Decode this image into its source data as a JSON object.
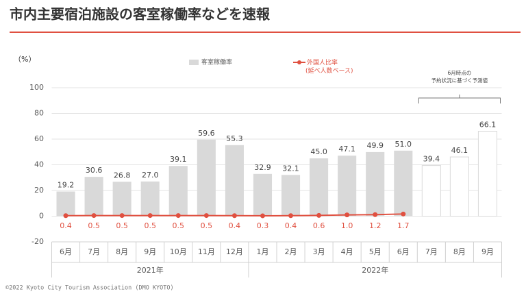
{
  "chart_data": {
    "type": "bar_line",
    "title": "市内主要宿泊施設の客室稼働率などを速報",
    "y_label": "（%）",
    "footer": "©2022 Kyoto City Tourism Association (DMO KYOTO)",
    "categories": [
      "6月",
      "7月",
      "8月",
      "9月",
      "10月",
      "11月",
      "12月",
      "1月",
      "2月",
      "3月",
      "4月",
      "5月",
      "6月",
      "7月",
      "8月",
      "9月"
    ],
    "groups": [
      {
        "label": "2021年",
        "span": 7
      },
      {
        "label": "2022年",
        "span": 9
      }
    ],
    "series": [
      {
        "name": "客室稼働率",
        "type": "bar",
        "color": "#d9d9d9",
        "values": [
          19.2,
          30.6,
          26.8,
          27.0,
          39.1,
          59.6,
          55.3,
          32.9,
          32.1,
          45.0,
          47.1,
          49.9,
          51.0,
          39.4,
          46.1,
          66.1
        ],
        "value_labels": [
          "19.2",
          "30.6",
          "26.8",
          "27.0",
          "39.1",
          "59.6",
          "55.3",
          "32.9",
          "32.1",
          "45.0",
          "47.1",
          "49.9",
          "51.0",
          "39.4",
          "46.1",
          "66.1"
        ]
      },
      {
        "name": "外国人比率\n(延べ人数ベース)",
        "type": "line",
        "color": "#e05040",
        "values": [
          0.4,
          0.5,
          0.5,
          0.5,
          0.5,
          0.5,
          0.4,
          0.3,
          0.4,
          0.6,
          1.0,
          1.2,
          1.7,
          null,
          null,
          null
        ],
        "value_labels": [
          "0.4",
          "0.5",
          "0.5",
          "0.5",
          "0.5",
          "0.5",
          "0.4",
          "0.3",
          "0.4",
          "0.6",
          "1.0",
          "1.2",
          "1.7",
          null,
          null,
          null
        ]
      }
    ],
    "annotation": {
      "lines": [
        "6月時点の",
        "予約状況に基づく予測値"
      ],
      "range": [
        13,
        15
      ]
    },
    "ylim": [
      -20,
      100
    ],
    "yticks": [
      -20,
      0,
      20,
      40,
      60,
      80,
      100
    ],
    "grid": true
  }
}
